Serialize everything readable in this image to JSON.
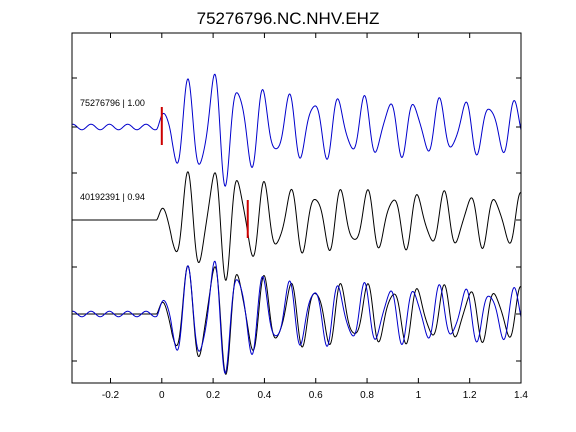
{
  "chart_data": {
    "type": "line",
    "title": "75276796.NC.NHV.EHZ",
    "xlabel": "",
    "ylabel": "",
    "xlim": [
      -0.35,
      1.4
    ],
    "x_ticks": [
      -0.2,
      0,
      0.2,
      0.4,
      0.6,
      0.8,
      1.0,
      1.2,
      1.4
    ],
    "x_tick_labels": [
      "-0.2",
      "0",
      "0.2",
      "0.4",
      "0.6",
      "0.8",
      "1",
      "1.2",
      "1.4"
    ],
    "grid": false,
    "legend": "none",
    "traces": [
      {
        "label": "75276796 | 1.00",
        "color": "#0000cc",
        "pick_time": 0.0,
        "onset": -0.02,
        "freq": 10.2,
        "amplitude": 0.75,
        "phase": 0.0,
        "noise": 0.06
      },
      {
        "label": "40192391 | 0.94",
        "color": "#000000",
        "pick_time": 0.335,
        "onset": -0.02,
        "freq": 10.0,
        "amplitude": 0.75,
        "phase": 0.3,
        "noise": 0.0
      }
    ],
    "overlay": {
      "series_colors": [
        "#0000cc",
        "#000000"
      ]
    },
    "pick_color": "#cc0000"
  }
}
